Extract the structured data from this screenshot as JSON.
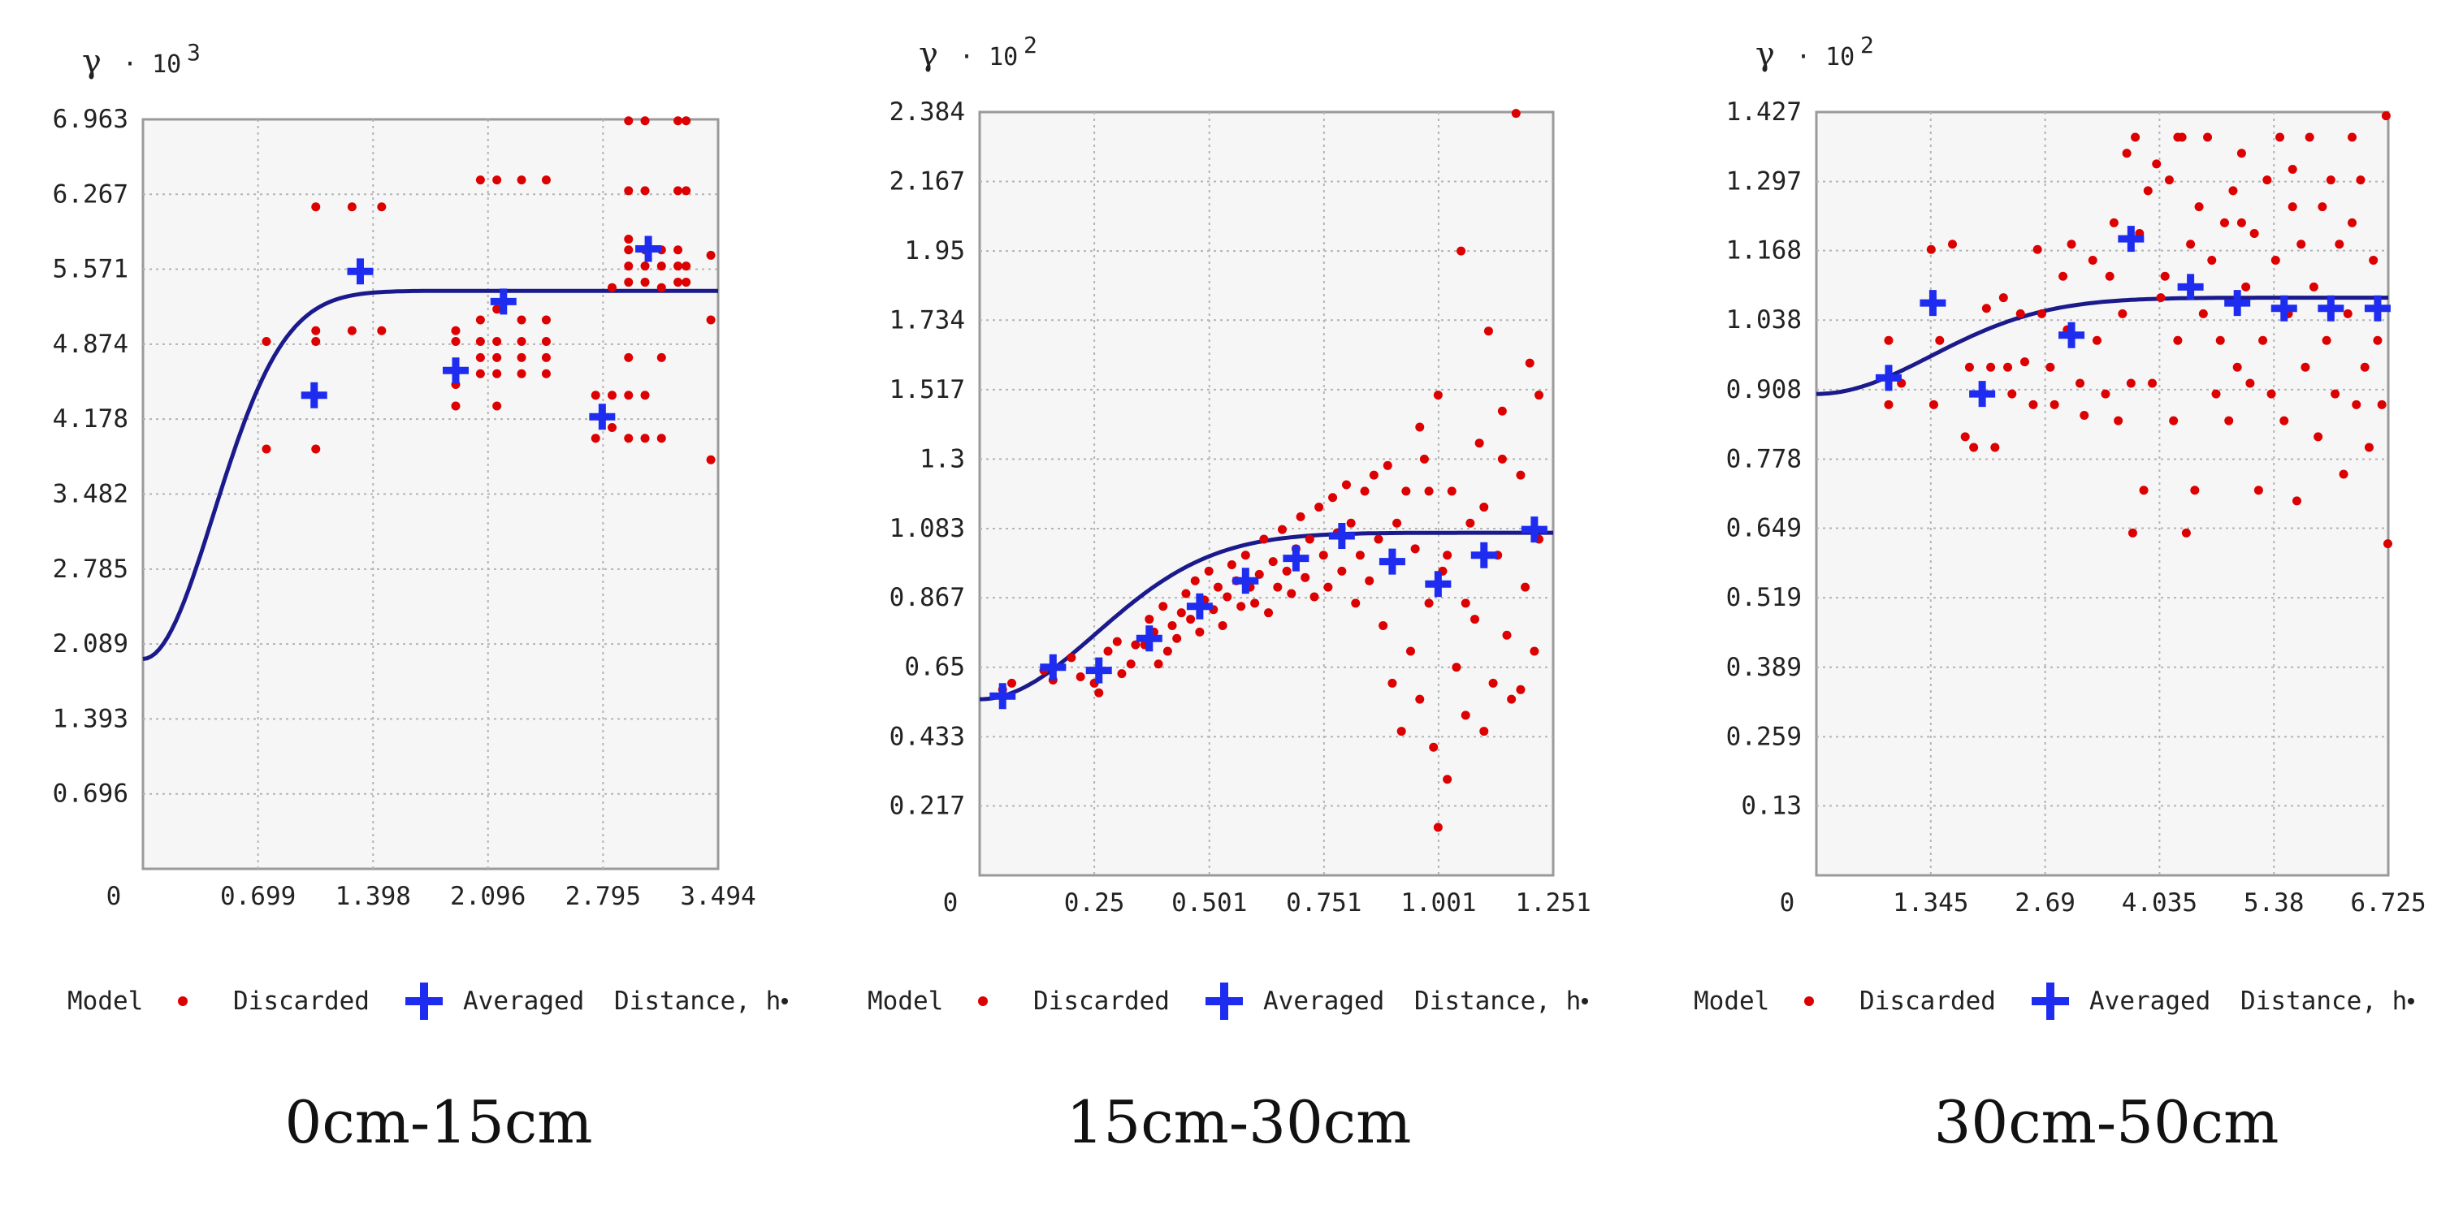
{
  "legend": {
    "model": "Model",
    "discarded": "Discarded",
    "averaged": "Averaged",
    "distance": "Distance, h"
  },
  "colors": {
    "model_line": "#1a1a8c",
    "discarded": "#dd0000",
    "averaged": "#1e2cf0",
    "plot_bg": "#f6f6f6",
    "grid": "#b4b4b4",
    "frame": "#9a9a9a"
  },
  "chart_data": [
    {
      "type": "scatter",
      "title": "0cm-15cm",
      "ylabel": "γ",
      "y_exponent_label": "· 10",
      "y_exponent_sup": "3",
      "xlabel": "Distance, h",
      "xlim": [
        0,
        3.494
      ],
      "ylim": [
        0,
        6.963
      ],
      "xticks": [
        "0.699",
        "1.398",
        "2.096",
        "2.795",
        "3.494"
      ],
      "yticks": [
        "6.963",
        "6.267",
        "5.571",
        "4.874",
        "4.178",
        "3.482",
        "2.785",
        "2.089",
        "1.393",
        "0.696"
      ],
      "origin_label": "0",
      "model": {
        "nugget": 1.95,
        "sill": 5.37,
        "range": 1.05
      },
      "discarded": [
        [
          0.75,
          4.9
        ],
        [
          0.75,
          3.9
        ],
        [
          1.05,
          6.15
        ],
        [
          1.05,
          5.0
        ],
        [
          1.05,
          4.9
        ],
        [
          1.05,
          3.9
        ],
        [
          1.27,
          6.15
        ],
        [
          1.27,
          5.0
        ],
        [
          1.45,
          6.15
        ],
        [
          1.45,
          5.0
        ],
        [
          1.9,
          5.0
        ],
        [
          1.9,
          4.9
        ],
        [
          1.9,
          4.5
        ],
        [
          1.9,
          4.3
        ],
        [
          2.05,
          6.4
        ],
        [
          2.05,
          5.1
        ],
        [
          2.05,
          4.9
        ],
        [
          2.05,
          4.75
        ],
        [
          2.05,
          4.6
        ],
        [
          2.15,
          6.4
        ],
        [
          2.15,
          5.2
        ],
        [
          2.15,
          4.9
        ],
        [
          2.15,
          4.75
        ],
        [
          2.15,
          4.6
        ],
        [
          2.15,
          4.3
        ],
        [
          2.3,
          6.4
        ],
        [
          2.3,
          5.1
        ],
        [
          2.3,
          4.9
        ],
        [
          2.3,
          4.75
        ],
        [
          2.3,
          4.6
        ],
        [
          2.45,
          6.4
        ],
        [
          2.45,
          5.1
        ],
        [
          2.45,
          4.9
        ],
        [
          2.45,
          4.75
        ],
        [
          2.45,
          4.6
        ],
        [
          2.75,
          4.4
        ],
        [
          2.75,
          4.0
        ],
        [
          2.85,
          5.4
        ],
        [
          2.85,
          4.4
        ],
        [
          2.85,
          4.1
        ],
        [
          2.95,
          6.95
        ],
        [
          2.95,
          6.3
        ],
        [
          2.95,
          5.85
        ],
        [
          2.95,
          5.75
        ],
        [
          2.95,
          5.6
        ],
        [
          2.95,
          5.45
        ],
        [
          2.95,
          4.75
        ],
        [
          2.95,
          4.4
        ],
        [
          2.95,
          4.0
        ],
        [
          3.05,
          6.95
        ],
        [
          3.05,
          6.3
        ],
        [
          3.05,
          5.75
        ],
        [
          3.05,
          5.6
        ],
        [
          3.05,
          5.45
        ],
        [
          3.05,
          4.4
        ],
        [
          3.05,
          4.0
        ],
        [
          3.15,
          5.75
        ],
        [
          3.15,
          5.6
        ],
        [
          3.15,
          5.4
        ],
        [
          3.15,
          4.75
        ],
        [
          3.15,
          4.0
        ],
        [
          3.25,
          6.95
        ],
        [
          3.25,
          6.3
        ],
        [
          3.25,
          5.75
        ],
        [
          3.25,
          5.6
        ],
        [
          3.25,
          5.45
        ],
        [
          3.3,
          6.95
        ],
        [
          3.3,
          6.3
        ],
        [
          3.3,
          5.6
        ],
        [
          3.3,
          5.45
        ],
        [
          3.45,
          5.7
        ],
        [
          3.45,
          5.1
        ],
        [
          3.45,
          3.8
        ]
      ],
      "averaged": [
        [
          1.04,
          4.4
        ],
        [
          1.32,
          5.55
        ],
        [
          1.9,
          4.63
        ],
        [
          2.19,
          5.27
        ],
        [
          2.79,
          4.2
        ],
        [
          3.07,
          5.76
        ]
      ]
    },
    {
      "type": "scatter",
      "title": "15cm-30cm",
      "ylabel": "γ",
      "y_exponent_label": "· 10",
      "y_exponent_sup": "2",
      "xlabel": "Distance, h",
      "xlim": [
        0,
        1.251
      ],
      "ylim": [
        0,
        2.384
      ],
      "xticks": [
        "0.25",
        "0.501",
        "0.751",
        "1.001",
        "1.251"
      ],
      "yticks": [
        "2.384",
        "2.167",
        "1.95",
        "1.734",
        "1.517",
        "1.3",
        "1.083",
        "0.867",
        "0.65",
        "0.433",
        "0.217"
      ],
      "origin_label": "0",
      "model": {
        "nugget": 0.55,
        "sill": 1.07,
        "range": 0.62
      },
      "discarded": [
        [
          0.05,
          0.58
        ],
        [
          0.07,
          0.6
        ],
        [
          0.14,
          0.64
        ],
        [
          0.16,
          0.61
        ],
        [
          0.2,
          0.68
        ],
        [
          0.22,
          0.62
        ],
        [
          0.25,
          0.6
        ],
        [
          0.26,
          0.57
        ],
        [
          0.28,
          0.7
        ],
        [
          0.3,
          0.73
        ],
        [
          0.31,
          0.63
        ],
        [
          0.33,
          0.66
        ],
        [
          0.34,
          0.72
        ],
        [
          0.36,
          0.72
        ],
        [
          0.37,
          0.8
        ],
        [
          0.38,
          0.76
        ],
        [
          0.39,
          0.66
        ],
        [
          0.4,
          0.84
        ],
        [
          0.41,
          0.7
        ],
        [
          0.42,
          0.78
        ],
        [
          0.43,
          0.74
        ],
        [
          0.44,
          0.82
        ],
        [
          0.45,
          0.88
        ],
        [
          0.46,
          0.8
        ],
        [
          0.47,
          0.92
        ],
        [
          0.48,
          0.76
        ],
        [
          0.49,
          0.86
        ],
        [
          0.5,
          0.95
        ],
        [
          0.51,
          0.83
        ],
        [
          0.52,
          0.9
        ],
        [
          0.53,
          0.78
        ],
        [
          0.54,
          0.87
        ],
        [
          0.55,
          0.97
        ],
        [
          0.56,
          0.92
        ],
        [
          0.57,
          0.84
        ],
        [
          0.58,
          1.0
        ],
        [
          0.59,
          0.9
        ],
        [
          0.6,
          0.85
        ],
        [
          0.61,
          0.94
        ],
        [
          0.62,
          1.05
        ],
        [
          0.63,
          0.82
        ],
        [
          0.64,
          0.98
        ],
        [
          0.65,
          0.9
        ],
        [
          0.66,
          1.08
        ],
        [
          0.67,
          0.95
        ],
        [
          0.68,
          0.88
        ],
        [
          0.69,
          1.02
        ],
        [
          0.7,
          1.12
        ],
        [
          0.71,
          0.93
        ],
        [
          0.72,
          1.05
        ],
        [
          0.73,
          0.87
        ],
        [
          0.74,
          1.15
        ],
        [
          0.75,
          1.0
        ],
        [
          0.76,
          0.9
        ],
        [
          0.77,
          1.18
        ],
        [
          0.78,
          1.07
        ],
        [
          0.79,
          0.95
        ],
        [
          0.8,
          1.22
        ],
        [
          0.81,
          1.1
        ],
        [
          0.82,
          0.85
        ],
        [
          0.83,
          1.0
        ],
        [
          0.84,
          1.2
        ],
        [
          0.85,
          0.92
        ],
        [
          0.86,
          1.25
        ],
        [
          0.87,
          1.05
        ],
        [
          0.88,
          0.78
        ],
        [
          0.89,
          1.28
        ],
        [
          0.9,
          0.6
        ],
        [
          0.91,
          1.1
        ],
        [
          0.92,
          0.45
        ],
        [
          0.93,
          1.2
        ],
        [
          0.94,
          0.7
        ],
        [
          0.95,
          1.02
        ],
        [
          0.96,
          0.55
        ],
        [
          0.97,
          1.3
        ],
        [
          0.98,
          0.85
        ],
        [
          0.99,
          0.4
        ],
        [
          1.0,
          1.5
        ],
        [
          1.0,
          0.15
        ],
        [
          1.01,
          0.95
        ],
        [
          1.02,
          0.3
        ],
        [
          1.03,
          1.2
        ],
        [
          1.04,
          0.65
        ],
        [
          1.05,
          1.95
        ],
        [
          1.06,
          0.5
        ],
        [
          1.07,
          1.1
        ],
        [
          1.08,
          0.8
        ],
        [
          1.09,
          1.35
        ],
        [
          1.1,
          0.45
        ],
        [
          1.11,
          1.7
        ],
        [
          1.12,
          0.6
        ],
        [
          1.13,
          1.0
        ],
        [
          1.14,
          1.45
        ],
        [
          1.15,
          0.75
        ],
        [
          1.16,
          0.55
        ],
        [
          1.17,
          2.38
        ],
        [
          1.18,
          1.25
        ],
        [
          1.19,
          0.9
        ],
        [
          1.2,
          1.6
        ],
        [
          1.21,
          0.7
        ],
        [
          1.22,
          1.5
        ],
        [
          0.96,
          1.4
        ],
        [
          0.98,
          1.2
        ],
        [
          1.02,
          1.0
        ],
        [
          1.06,
          0.85
        ],
        [
          1.1,
          1.15
        ],
        [
          1.14,
          1.3
        ],
        [
          1.18,
          0.58
        ],
        [
          1.22,
          1.05
        ]
      ],
      "averaged": [
        [
          0.05,
          0.56
        ],
        [
          0.16,
          0.65
        ],
        [
          0.26,
          0.64
        ],
        [
          0.37,
          0.74
        ],
        [
          0.48,
          0.84
        ],
        [
          0.58,
          0.92
        ],
        [
          0.69,
          0.99
        ],
        [
          0.79,
          1.06
        ],
        [
          0.9,
          0.98
        ],
        [
          1.0,
          0.91
        ],
        [
          1.1,
          1.0
        ],
        [
          1.21,
          1.08
        ]
      ]
    },
    {
      "type": "scatter",
      "title": "30cm-50cm",
      "ylabel": "γ",
      "y_exponent_label": "· 10",
      "y_exponent_sup": "2",
      "xlabel": "Distance, h",
      "xlim": [
        0,
        6.725
      ],
      "ylim": [
        0,
        1.427
      ],
      "xticks": [
        "1.345",
        "2.69",
        "4.035",
        "5.38",
        "6.725"
      ],
      "yticks": [
        "1.427",
        "1.297",
        "1.168",
        "1.038",
        "0.908",
        "0.778",
        "0.649",
        "0.519",
        "0.389",
        "0.259",
        "0.13"
      ],
      "origin_label": "0",
      "model": {
        "nugget": 0.9,
        "sill": 1.08,
        "range": 3.3
      },
      "discarded": [
        [
          0.85,
          0.88
        ],
        [
          0.85,
          1.0
        ],
        [
          1.0,
          0.92
        ],
        [
          1.35,
          1.17
        ],
        [
          1.38,
          0.88
        ],
        [
          1.45,
          1.0
        ],
        [
          1.6,
          1.18
        ],
        [
          1.75,
          0.82
        ],
        [
          1.8,
          0.95
        ],
        [
          1.85,
          0.8
        ],
        [
          2.0,
          1.06
        ],
        [
          2.05,
          0.95
        ],
        [
          2.1,
          0.8
        ],
        [
          2.2,
          1.08
        ],
        [
          2.25,
          0.95
        ],
        [
          2.3,
          0.9
        ],
        [
          2.4,
          1.05
        ],
        [
          2.45,
          0.96
        ],
        [
          2.55,
          0.88
        ],
        [
          2.6,
          1.17
        ],
        [
          2.65,
          1.05
        ],
        [
          2.75,
          0.95
        ],
        [
          2.8,
          0.88
        ],
        [
          2.9,
          1.12
        ],
        [
          2.95,
          1.02
        ],
        [
          3.0,
          1.18
        ],
        [
          3.1,
          0.92
        ],
        [
          3.15,
          0.86
        ],
        [
          3.25,
          1.15
        ],
        [
          3.3,
          1.0
        ],
        [
          3.4,
          0.9
        ],
        [
          3.45,
          1.12
        ],
        [
          3.5,
          1.22
        ],
        [
          3.55,
          0.85
        ],
        [
          3.6,
          1.05
        ],
        [
          3.65,
          1.35
        ],
        [
          3.7,
          0.92
        ],
        [
          3.72,
          0.64
        ],
        [
          3.75,
          1.38
        ],
        [
          3.8,
          1.2
        ],
        [
          3.85,
          0.72
        ],
        [
          3.9,
          1.28
        ],
        [
          3.95,
          0.92
        ],
        [
          4.0,
          1.33
        ],
        [
          4.05,
          1.08
        ],
        [
          4.1,
          1.12
        ],
        [
          4.15,
          1.3
        ],
        [
          4.2,
          0.85
        ],
        [
          4.25,
          1.0
        ],
        [
          4.3,
          1.38
        ],
        [
          4.35,
          0.64
        ],
        [
          4.4,
          1.18
        ],
        [
          4.45,
          0.72
        ],
        [
          4.5,
          1.25
        ],
        [
          4.55,
          1.05
        ],
        [
          4.6,
          1.38
        ],
        [
          4.65,
          1.15
        ],
        [
          4.7,
          0.9
        ],
        [
          4.75,
          1.0
        ],
        [
          4.8,
          1.22
        ],
        [
          4.85,
          0.85
        ],
        [
          4.9,
          1.28
        ],
        [
          4.95,
          0.95
        ],
        [
          5.0,
          1.35
        ],
        [
          5.05,
          1.1
        ],
        [
          5.1,
          0.92
        ],
        [
          5.15,
          1.2
        ],
        [
          5.2,
          0.72
        ],
        [
          5.25,
          1.0
        ],
        [
          5.3,
          1.3
        ],
        [
          5.35,
          0.9
        ],
        [
          5.4,
          1.15
        ],
        [
          5.45,
          1.38
        ],
        [
          5.5,
          0.85
        ],
        [
          5.55,
          1.05
        ],
        [
          5.6,
          1.25
        ],
        [
          5.65,
          0.7
        ],
        [
          5.7,
          1.18
        ],
        [
          5.75,
          0.95
        ],
        [
          5.8,
          1.38
        ],
        [
          5.85,
          1.1
        ],
        [
          5.9,
          0.82
        ],
        [
          5.95,
          1.25
        ],
        [
          6.0,
          1.0
        ],
        [
          6.05,
          1.3
        ],
        [
          6.1,
          0.9
        ],
        [
          6.15,
          1.18
        ],
        [
          6.2,
          0.75
        ],
        [
          6.25,
          1.05
        ],
        [
          6.3,
          1.22
        ],
        [
          6.35,
          0.88
        ],
        [
          6.4,
          1.3
        ],
        [
          6.45,
          0.95
        ],
        [
          6.5,
          0.8
        ],
        [
          6.55,
          1.15
        ],
        [
          6.6,
          1.0
        ],
        [
          6.65,
          0.88
        ],
        [
          6.7,
          1.42
        ],
        [
          6.72,
          0.62
        ],
        [
          4.25,
          1.38
        ],
        [
          5.0,
          1.22
        ],
        [
          5.6,
          1.32
        ],
        [
          6.3,
          1.38
        ]
      ],
      "averaged": [
        [
          0.85,
          0.93
        ],
        [
          1.37,
          1.07
        ],
        [
          1.95,
          0.9
        ],
        [
          3.0,
          1.01
        ],
        [
          3.7,
          1.19
        ],
        [
          4.4,
          1.1
        ],
        [
          4.95,
          1.07
        ],
        [
          5.5,
          1.06
        ],
        [
          6.05,
          1.06
        ],
        [
          6.6,
          1.06
        ]
      ]
    }
  ]
}
